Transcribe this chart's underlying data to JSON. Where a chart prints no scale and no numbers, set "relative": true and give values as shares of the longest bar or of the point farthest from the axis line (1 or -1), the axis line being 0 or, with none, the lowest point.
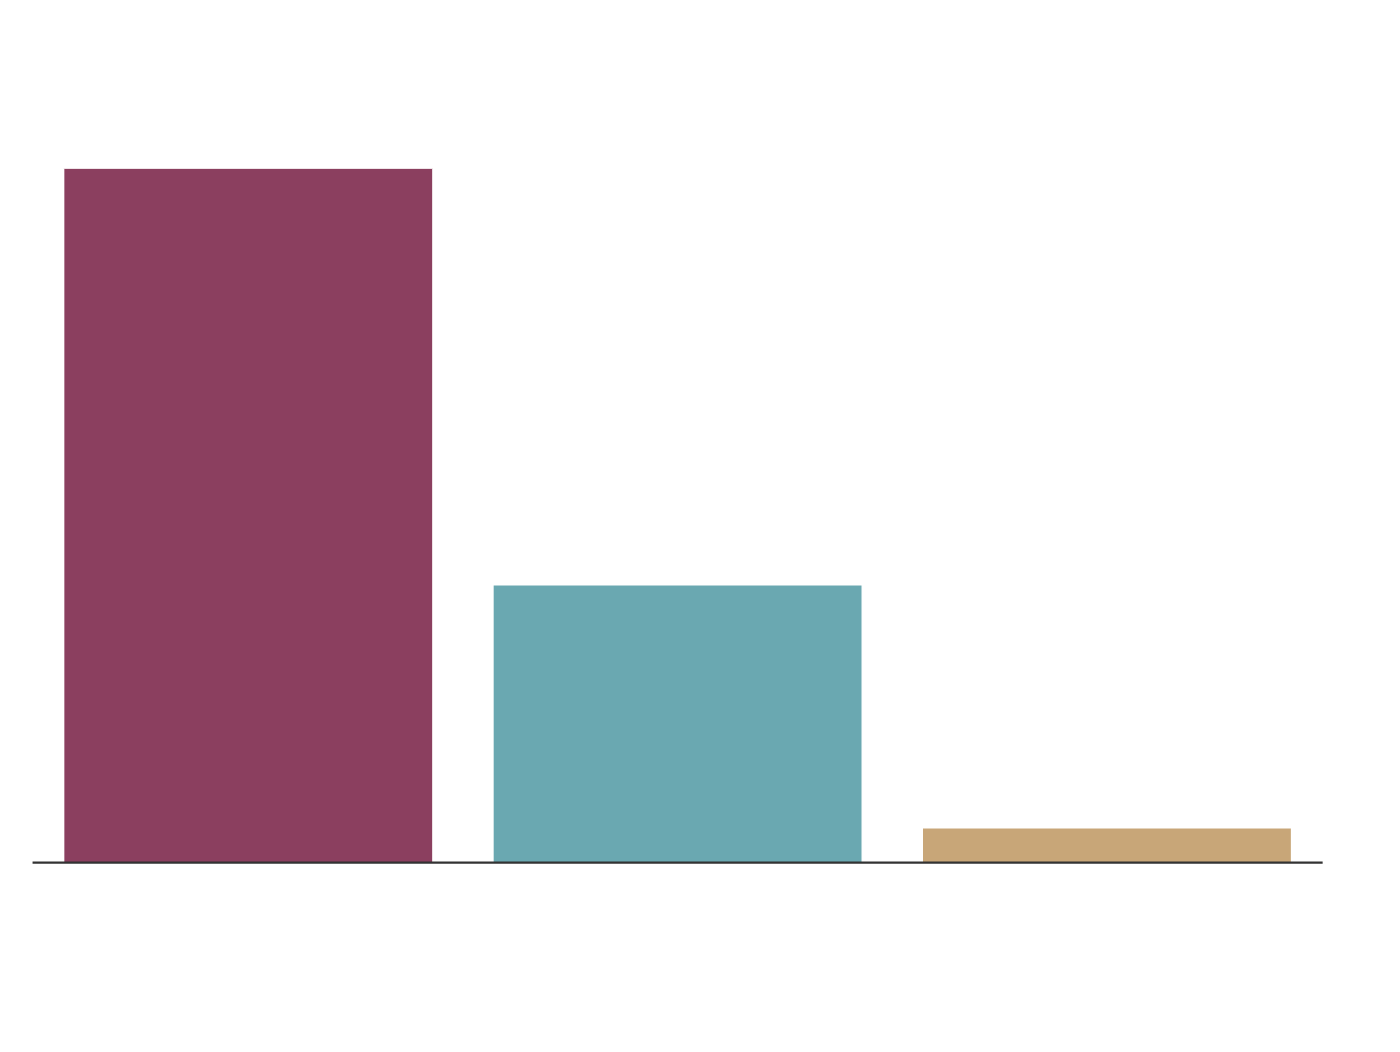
{
  "chart_data": {
    "type": "bar",
    "relative": true,
    "categories": [
      null,
      null,
      null
    ],
    "values": [
      1,
      0.4,
      0.05
    ],
    "colors": [
      "#8b3f5f",
      "#6aa8b1",
      "#c8a678"
    ],
    "grid": false
  }
}
